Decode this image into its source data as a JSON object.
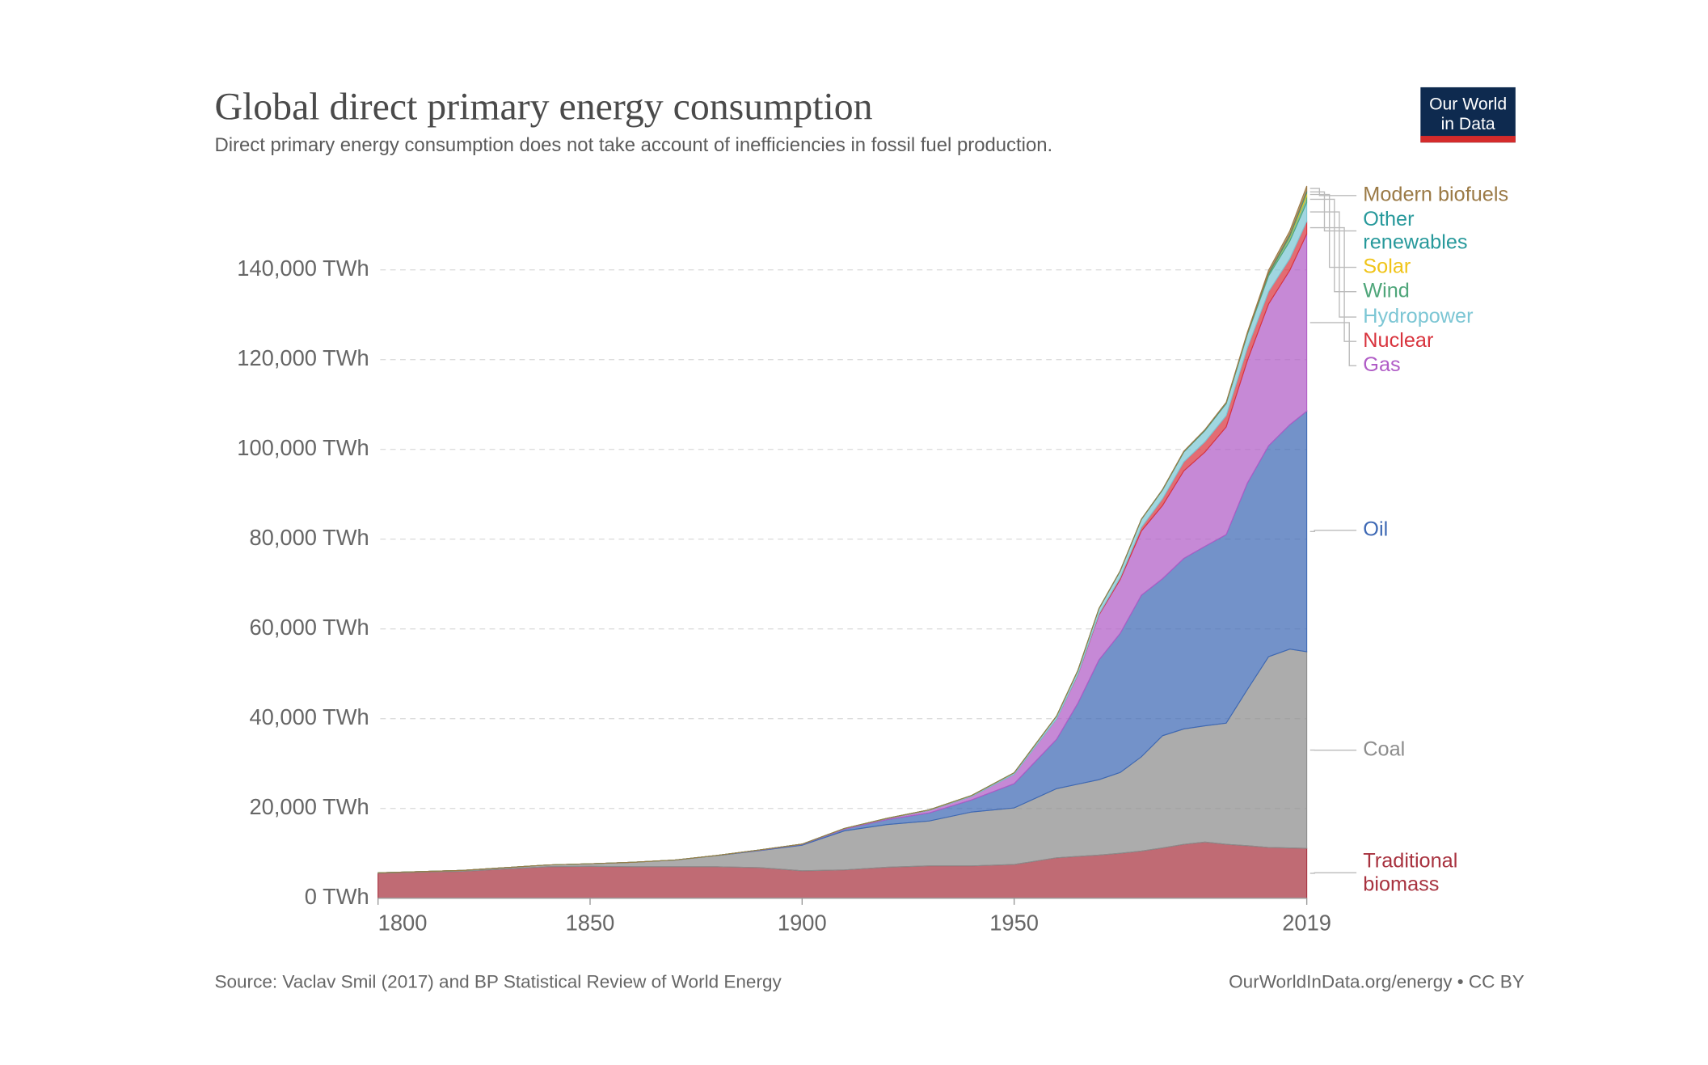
{
  "chart_data": {
    "type": "stacked_area",
    "title": "Global direct primary energy consumption",
    "subtitle": "Direct primary energy consumption does not take account of inefficiencies in fossil fuel production.",
    "logo": "Our World in Data",
    "source": "Source: Vaclav Smil (2017) and BP Statistical Review of World Energy",
    "license": "OurWorldInData.org/energy • CC BY",
    "x": [
      1800,
      1810,
      1820,
      1830,
      1840,
      1850,
      1860,
      1870,
      1880,
      1890,
      1900,
      1910,
      1920,
      1930,
      1940,
      1950,
      1960,
      1965,
      1970,
      1975,
      1980,
      1985,
      1990,
      1995,
      2000,
      2005,
      2010,
      2015,
      2019
    ],
    "xlim": [
      1800,
      2019
    ],
    "xticks": [
      1800,
      1850,
      1900,
      1950,
      2019
    ],
    "ylim": [
      0,
      160000
    ],
    "yticks": [
      {
        "value": 0,
        "label": "0 TWh"
      },
      {
        "value": 20000,
        "label": "20,000 TWh"
      },
      {
        "value": 40000,
        "label": "40,000 TWh"
      },
      {
        "value": 60000,
        "label": "60,000 TWh"
      },
      {
        "value": 80000,
        "label": "80,000 TWh"
      },
      {
        "value": 100000,
        "label": "100,000 TWh"
      },
      {
        "value": 120000,
        "label": "120,000 TWh"
      },
      {
        "value": 140000,
        "label": "140,000 TWh"
      }
    ],
    "grid": true,
    "series": [
      {
        "name": "Traditional biomass",
        "color": "#a8323f",
        "values": [
          5560,
          5800,
          6000,
          6500,
          7000,
          7100,
          7000,
          7000,
          7000,
          6800,
          6100,
          6300,
          6900,
          7200,
          7200,
          7500,
          9000,
          9300,
          9600,
          10000,
          10500,
          11200,
          12000,
          12500,
          12000,
          11700,
          11300,
          11200,
          11100
        ]
      },
      {
        "name": "Coal",
        "color": "#8c8c8c",
        "values": [
          97,
          130,
          200,
          300,
          400,
          570,
          1000,
          1500,
          2500,
          3800,
          5700,
          8700,
          9500,
          10000,
          12000,
          12600,
          15400,
          16100,
          16800,
          18000,
          21000,
          25000,
          25700,
          25900,
          27000,
          34800,
          42500,
          44300,
          43800
        ]
      },
      {
        "name": "Oil",
        "color": "#3d68b4",
        "values": [
          0,
          0,
          0,
          0,
          0,
          0,
          0,
          6,
          35,
          90,
          180,
          380,
          1100,
          1800,
          2700,
          5400,
          11000,
          18000,
          26700,
          31000,
          36000,
          35000,
          38000,
          40000,
          42000,
          46000,
          47000,
          50000,
          53600
        ]
      },
      {
        "name": "Gas",
        "color": "#b05cc6",
        "values": [
          0,
          0,
          0,
          0,
          0,
          0,
          0,
          0,
          0,
          70,
          70,
          150,
          230,
          560,
          800,
          2100,
          4500,
          6300,
          10000,
          12000,
          14300,
          16300,
          19500,
          21000,
          24000,
          27300,
          31600,
          34400,
          39500
        ]
      },
      {
        "name": "Nuclear",
        "color": "#d8333d",
        "values": [
          0,
          0,
          0,
          0,
          0,
          0,
          0,
          0,
          0,
          0,
          0,
          0,
          0,
          0,
          0,
          0,
          0,
          70,
          220,
          400,
          800,
          1500,
          2000,
          2300,
          2500,
          2800,
          2750,
          2600,
          2800
        ]
      },
      {
        "name": "Hydropower",
        "color": "#7cc6d4",
        "values": [
          0,
          0,
          0,
          0,
          0,
          0,
          0,
          0,
          0,
          0,
          0,
          20,
          60,
          130,
          190,
          340,
          690,
          920,
          1200,
          1500,
          1800,
          2000,
          2200,
          2500,
          2700,
          3000,
          3500,
          3900,
          4200
        ]
      },
      {
        "name": "Wind",
        "color": "#4fa67a",
        "values": [
          0,
          0,
          0,
          0,
          0,
          0,
          0,
          0,
          0,
          0,
          0,
          0,
          0,
          0,
          0,
          0,
          0,
          0,
          0,
          0,
          0,
          0,
          4,
          8,
          31,
          104,
          346,
          831,
          1430
        ]
      },
      {
        "name": "Solar",
        "color": "#f0c419",
        "values": [
          0,
          0,
          0,
          0,
          0,
          0,
          0,
          0,
          0,
          0,
          0,
          0,
          0,
          0,
          0,
          0,
          0,
          0,
          0,
          0,
          0,
          0,
          0,
          0,
          0,
          4,
          32,
          256,
          720
        ]
      },
      {
        "name": "Other renewables",
        "color": "#27999b",
        "values": [
          0,
          0,
          0,
          0,
          0,
          0,
          0,
          0,
          0,
          0,
          0,
          0,
          0,
          0,
          0,
          0,
          0,
          20,
          30,
          40,
          50,
          90,
          120,
          140,
          160,
          200,
          270,
          370,
          440
        ]
      },
      {
        "name": "Modern biofuels",
        "color": "#9b7a46",
        "values": [
          0,
          0,
          0,
          0,
          0,
          0,
          0,
          0,
          0,
          0,
          0,
          0,
          0,
          0,
          0,
          0,
          0,
          0,
          0,
          0,
          0,
          0,
          70,
          80,
          110,
          220,
          620,
          830,
          1100
        ]
      }
    ]
  }
}
